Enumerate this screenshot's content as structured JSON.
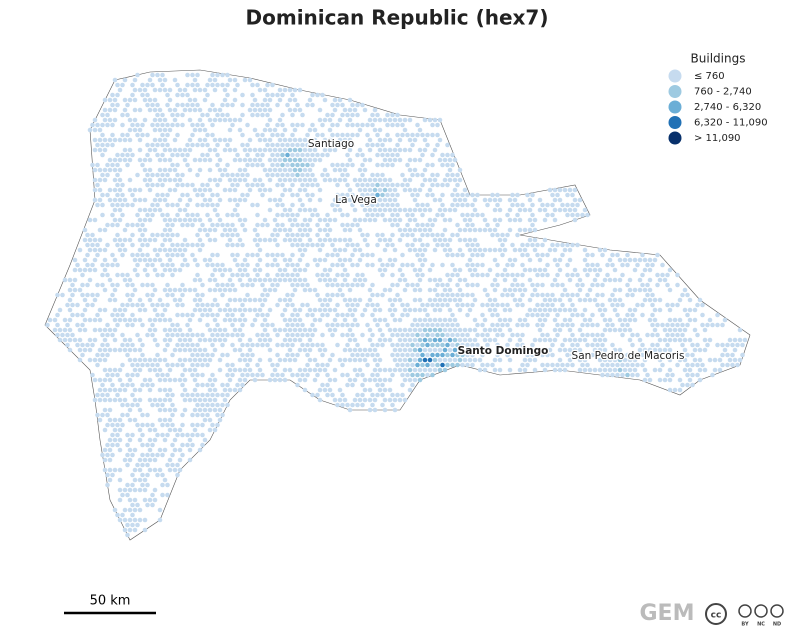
{
  "title": "Dominican Republic (hex7)",
  "legend": {
    "title": "Buildings",
    "items": [
      {
        "label": "≤ 760",
        "color": "#c6dbef"
      },
      {
        "label": "760 - 2,740",
        "color": "#9ecae1"
      },
      {
        "label": "2,740 - 6,320",
        "color": "#6baed6"
      },
      {
        "label": "6,320 - 11,090",
        "color": "#2171b5"
      },
      {
        "label": "> 11,090",
        "color": "#08306b"
      }
    ]
  },
  "places": [
    "Santiago",
    "La Vega",
    "Santo Domingo",
    "San Pedro de Macoris"
  ],
  "scale_bar": "50 km",
  "logo": {
    "text": "GEM",
    "license": [
      "BY",
      "NC",
      "ND"
    ]
  }
}
